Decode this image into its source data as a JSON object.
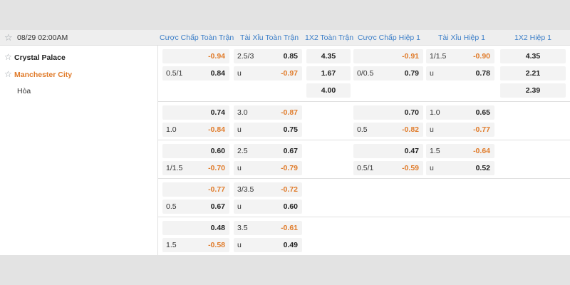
{
  "match": {
    "datetime": "08/29 02:00AM",
    "home": "Crystal Palace",
    "away": "Manchester City",
    "draw_label": "Hòa"
  },
  "columns": [
    "Cược Chấp Toàn Trận",
    "Tài Xỉu Toàn Trận",
    "1X2 Toàn Trận",
    "Cược Chấp Hiệp 1",
    "Tài Xỉu Hiệp 1",
    "1X2 Hiệp 1"
  ],
  "main": {
    "hc_ft": [
      {
        "line": "",
        "val": "-0.94"
      },
      {
        "line": "0.5/1",
        "val": "0.84"
      }
    ],
    "ou_ft": [
      {
        "line": "2.5/3",
        "val": "0.85"
      },
      {
        "line": "u",
        "val": "-0.97"
      }
    ],
    "x12_ft": [
      "4.35",
      "1.67",
      "4.00"
    ],
    "hc_h1": [
      {
        "line": "",
        "val": "-0.91"
      },
      {
        "line": "0/0.5",
        "val": "0.79"
      }
    ],
    "ou_h1": [
      {
        "line": "1/1.5",
        "val": "-0.90"
      },
      {
        "line": "u",
        "val": "0.78"
      }
    ],
    "x12_h1": [
      "4.35",
      "2.21",
      "2.39"
    ]
  },
  "alt_lines": [
    {
      "hc_ft": [
        {
          "line": "",
          "val": "0.74"
        },
        {
          "line": "1.0",
          "val": "-0.84"
        }
      ],
      "ou_ft": [
        {
          "line": "3.0",
          "val": "-0.87"
        },
        {
          "line": "u",
          "val": "0.75"
        }
      ],
      "hc_h1": [
        {
          "line": "",
          "val": "0.70"
        },
        {
          "line": "0.5",
          "val": "-0.82"
        }
      ],
      "ou_h1": [
        {
          "line": "1.0",
          "val": "0.65"
        },
        {
          "line": "u",
          "val": "-0.77"
        }
      ]
    },
    {
      "hc_ft": [
        {
          "line": "",
          "val": "0.60"
        },
        {
          "line": "1/1.5",
          "val": "-0.70"
        }
      ],
      "ou_ft": [
        {
          "line": "2.5",
          "val": "0.67"
        },
        {
          "line": "u",
          "val": "-0.79"
        }
      ],
      "hc_h1": [
        {
          "line": "",
          "val": "0.47"
        },
        {
          "line": "0.5/1",
          "val": "-0.59"
        }
      ],
      "ou_h1": [
        {
          "line": "1.5",
          "val": "-0.64"
        },
        {
          "line": "u",
          "val": "0.52"
        }
      ]
    },
    {
      "hc_ft": [
        {
          "line": "",
          "val": "-0.77"
        },
        {
          "line": "0.5",
          "val": "0.67"
        }
      ],
      "ou_ft": [
        {
          "line": "3/3.5",
          "val": "-0.72"
        },
        {
          "line": "u",
          "val": "0.60"
        }
      ]
    },
    {
      "hc_ft": [
        {
          "line": "",
          "val": "0.48"
        },
        {
          "line": "1.5",
          "val": "-0.58"
        }
      ],
      "ou_ft": [
        {
          "line": "3.5",
          "val": "-0.61"
        },
        {
          "line": "u",
          "val": "0.49"
        }
      ]
    }
  ],
  "colors": {
    "header_text": "#3d7fc8",
    "negative": "#e07b2a",
    "cell_bg": "#f3f3f3"
  },
  "icons": {
    "favorite": "star-outline-icon"
  }
}
